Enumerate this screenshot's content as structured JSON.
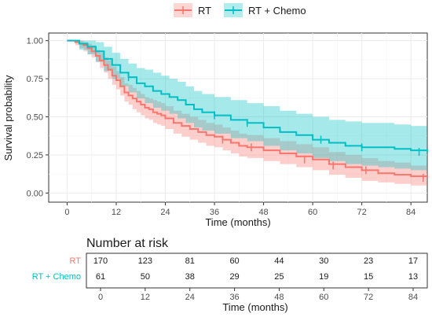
{
  "legend": {
    "entries": [
      {
        "name": "RT",
        "color": "#F8766D",
        "fill": "#F8766D"
      },
      {
        "name": "RT + Chemo",
        "color": "#00BFC4",
        "fill": "#00BFC4"
      }
    ],
    "placement": "top"
  },
  "chart_data": {
    "type": "line",
    "title": "",
    "xlabel": "Time (months)",
    "ylabel": "Survival probability",
    "xlim": [
      -4.5,
      88
    ],
    "ylim": [
      -0.06,
      1.05
    ],
    "x_ticks": [
      0,
      12,
      24,
      36,
      48,
      60,
      72,
      84
    ],
    "y_ticks": [
      0.0,
      0.25,
      0.5,
      0.75,
      1.0
    ],
    "y_tick_labels": [
      "0.00",
      "0.25",
      "0.50",
      "0.75",
      "1.00"
    ],
    "grid": true,
    "step": true,
    "series": [
      {
        "name": "RT",
        "color": "#F8766D",
        "x": [
          0,
          2,
          3,
          4,
          5,
          6,
          7,
          8,
          9,
          10,
          11,
          12,
          13,
          14,
          15,
          16,
          17,
          18,
          19,
          20,
          21,
          22,
          23,
          24,
          26,
          28,
          30,
          32,
          34,
          36,
          38,
          40,
          42,
          44,
          48,
          52,
          56,
          60,
          64,
          68,
          72,
          76,
          80,
          84,
          88
        ],
        "y": [
          1.0,
          0.99,
          0.98,
          0.97,
          0.95,
          0.93,
          0.9,
          0.87,
          0.84,
          0.81,
          0.77,
          0.74,
          0.7,
          0.66,
          0.64,
          0.62,
          0.6,
          0.58,
          0.56,
          0.55,
          0.53,
          0.52,
          0.51,
          0.49,
          0.46,
          0.44,
          0.42,
          0.4,
          0.38,
          0.37,
          0.35,
          0.33,
          0.31,
          0.3,
          0.28,
          0.26,
          0.24,
          0.22,
          0.19,
          0.17,
          0.15,
          0.13,
          0.12,
          0.11,
          0.1
        ],
        "lower": [
          1.0,
          0.97,
          0.95,
          0.93,
          0.91,
          0.89,
          0.86,
          0.82,
          0.79,
          0.75,
          0.71,
          0.68,
          0.64,
          0.6,
          0.58,
          0.55,
          0.53,
          0.51,
          0.49,
          0.48,
          0.46,
          0.45,
          0.44,
          0.42,
          0.39,
          0.37,
          0.35,
          0.33,
          0.31,
          0.3,
          0.28,
          0.26,
          0.24,
          0.23,
          0.21,
          0.19,
          0.17,
          0.15,
          0.12,
          0.1,
          0.08,
          0.07,
          0.06,
          0.05,
          0.04
        ],
        "upper": [
          1.0,
          1.0,
          1.0,
          0.99,
          0.98,
          0.97,
          0.94,
          0.92,
          0.89,
          0.87,
          0.83,
          0.8,
          0.76,
          0.72,
          0.71,
          0.69,
          0.67,
          0.65,
          0.63,
          0.62,
          0.61,
          0.6,
          0.59,
          0.57,
          0.54,
          0.52,
          0.5,
          0.48,
          0.46,
          0.45,
          0.43,
          0.41,
          0.39,
          0.38,
          0.36,
          0.34,
          0.32,
          0.3,
          0.27,
          0.25,
          0.23,
          0.21,
          0.2,
          0.18,
          0.17
        ],
        "censor_x": [
          38,
          45,
          58,
          65,
          73,
          87
        ],
        "censor_y": [
          0.35,
          0.3,
          0.22,
          0.18,
          0.15,
          0.1
        ]
      },
      {
        "name": "RT + Chemo",
        "color": "#00BFC4",
        "x": [
          0,
          3,
          5,
          7,
          9,
          11,
          13,
          15,
          17,
          19,
          21,
          23,
          25,
          27,
          29,
          31,
          33,
          36,
          40,
          44,
          48,
          52,
          56,
          60,
          64,
          68,
          72,
          76,
          80,
          84,
          88
        ],
        "y": [
          1.0,
          0.98,
          0.96,
          0.93,
          0.88,
          0.84,
          0.79,
          0.76,
          0.72,
          0.7,
          0.67,
          0.65,
          0.63,
          0.61,
          0.58,
          0.55,
          0.53,
          0.51,
          0.48,
          0.46,
          0.43,
          0.4,
          0.38,
          0.35,
          0.33,
          0.31,
          0.3,
          0.3,
          0.29,
          0.28,
          0.27
        ],
        "lower": [
          1.0,
          0.94,
          0.91,
          0.86,
          0.8,
          0.75,
          0.7,
          0.66,
          0.62,
          0.59,
          0.56,
          0.54,
          0.52,
          0.49,
          0.46,
          0.43,
          0.41,
          0.39,
          0.36,
          0.34,
          0.31,
          0.28,
          0.26,
          0.23,
          0.21,
          0.19,
          0.18,
          0.17,
          0.16,
          0.15,
          0.14
        ],
        "upper": [
          1.0,
          1.0,
          1.0,
          0.99,
          0.96,
          0.92,
          0.88,
          0.85,
          0.82,
          0.81,
          0.79,
          0.77,
          0.75,
          0.73,
          0.7,
          0.67,
          0.65,
          0.63,
          0.61,
          0.59,
          0.57,
          0.54,
          0.52,
          0.5,
          0.48,
          0.47,
          0.46,
          0.46,
          0.45,
          0.44,
          0.44
        ],
        "censor_x": [
          15,
          36,
          44,
          62,
          72,
          86
        ],
        "censor_y": [
          0.76,
          0.51,
          0.46,
          0.35,
          0.3,
          0.27
        ]
      }
    ]
  },
  "risk_table": {
    "title": "Number at risk",
    "xlabel": "Time (months)",
    "x_ticks": [
      0,
      12,
      24,
      36,
      48,
      60,
      72,
      84
    ],
    "rows": [
      {
        "label": "RT",
        "color": "#F8766D",
        "values": [
          170,
          123,
          81,
          60,
          44,
          30,
          23,
          17
        ]
      },
      {
        "label": "RT + Chemo",
        "color": "#00BFC4",
        "values": [
          61,
          50,
          38,
          29,
          25,
          19,
          15,
          13
        ]
      }
    ]
  }
}
